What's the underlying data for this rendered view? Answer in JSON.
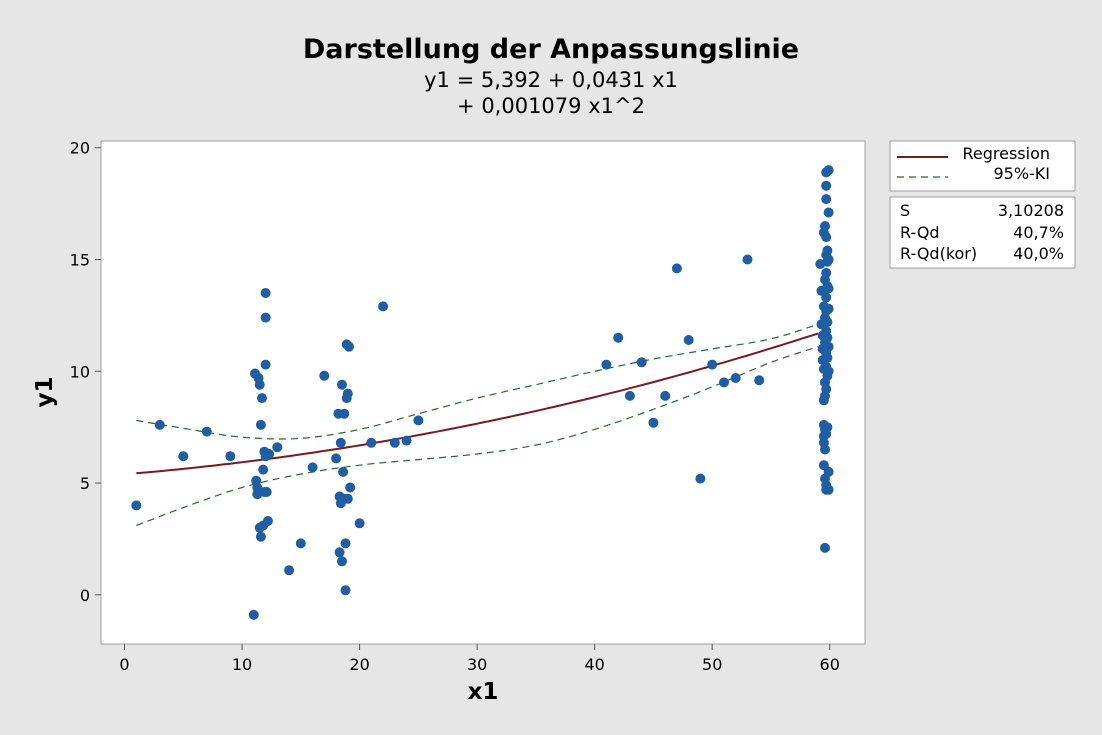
{
  "chart_data": {
    "type": "scatter",
    "title": "Darstellung der Anpassungslinie",
    "subtitle_lines": [
      "y1 = 5,392 + 0,0431 x1",
      "+ 0,001079 x1^2"
    ],
    "xlabel": "x1",
    "ylabel": "y1",
    "xlim": [
      -2,
      63
    ],
    "ylim": [
      -2.2,
      20.3
    ],
    "xticks": [
      0,
      10,
      20,
      30,
      40,
      50,
      60
    ],
    "yticks": [
      0,
      5,
      10,
      15,
      20
    ],
    "grid": false,
    "legend": {
      "position": "right",
      "entries": [
        {
          "label": "Regression",
          "style": "solid",
          "color": "#7a1a1f"
        },
        {
          "label": "95%-KI",
          "style": "dashed",
          "color": "#1e6e2a"
        }
      ]
    },
    "stats": [
      {
        "label": "S",
        "value": "3,10208"
      },
      {
        "label": "R-Qd",
        "value": "40,7%"
      },
      {
        "label": "R-Qd(kor)",
        "value": "40,0%"
      }
    ],
    "colors": {
      "points": "#1f5ea3",
      "regression": "#7a1a1f",
      "ci": "#1e6e2a",
      "background": "#e6e6e6",
      "plot_background": "#ffffff"
    },
    "regression": {
      "b0": 5.392,
      "b1": 0.0431,
      "b2": 0.001079,
      "x_range": [
        1,
        59
      ]
    },
    "ci_upper": [
      [
        1,
        7.8
      ],
      [
        5,
        7.45
      ],
      [
        10,
        7.05
      ],
      [
        15,
        7.0
      ],
      [
        20,
        7.4
      ],
      [
        25,
        8.1
      ],
      [
        30,
        8.8
      ],
      [
        35,
        9.4
      ],
      [
        40,
        10.0
      ],
      [
        45,
        10.55
      ],
      [
        50,
        11.0
      ],
      [
        55,
        11.45
      ],
      [
        59,
        12.1
      ]
    ],
    "ci_lower": [
      [
        1,
        3.1
      ],
      [
        5,
        3.9
      ],
      [
        10,
        4.8
      ],
      [
        15,
        5.4
      ],
      [
        20,
        5.8
      ],
      [
        25,
        6.05
      ],
      [
        30,
        6.3
      ],
      [
        35,
        6.7
      ],
      [
        40,
        7.4
      ],
      [
        45,
        8.3
      ],
      [
        50,
        9.3
      ],
      [
        55,
        10.4
      ],
      [
        59,
        11.1
      ]
    ],
    "points": [
      [
        1,
        4.0
      ],
      [
        3,
        7.6
      ],
      [
        5,
        6.2
      ],
      [
        7,
        7.3
      ],
      [
        9,
        6.2
      ],
      [
        11,
        -0.9
      ],
      [
        11.1,
        9.9
      ],
      [
        11.2,
        5.1
      ],
      [
        11.3,
        4.5
      ],
      [
        11.3,
        4.8
      ],
      [
        11.4,
        9.7
      ],
      [
        11.5,
        9.4
      ],
      [
        11.5,
        3.0
      ],
      [
        11.6,
        7.6
      ],
      [
        11.6,
        2.6
      ],
      [
        11.7,
        8.8
      ],
      [
        11.8,
        5.6
      ],
      [
        11.8,
        3.1
      ],
      [
        11.9,
        6.4
      ],
      [
        11.9,
        4.6
      ],
      [
        12,
        10.3
      ],
      [
        12,
        6.2
      ],
      [
        12,
        13.5
      ],
      [
        12,
        12.4
      ],
      [
        12.1,
        4.6
      ],
      [
        12.2,
        3.3
      ],
      [
        12.3,
        6.3
      ],
      [
        13,
        6.6
      ],
      [
        14,
        1.1
      ],
      [
        15,
        2.3
      ],
      [
        16,
        5.7
      ],
      [
        17,
        9.8
      ],
      [
        18,
        6.1
      ],
      [
        18.2,
        8.1
      ],
      [
        18.3,
        4.4
      ],
      [
        18.3,
        1.9
      ],
      [
        18.4,
        6.8
      ],
      [
        18.4,
        4.1
      ],
      [
        18.5,
        9.4
      ],
      [
        18.5,
        1.5
      ],
      [
        18.6,
        5.5
      ],
      [
        18.7,
        8.1
      ],
      [
        18.7,
        4.3
      ],
      [
        18.8,
        2.3
      ],
      [
        18.8,
        0.2
      ],
      [
        18.9,
        8.8
      ],
      [
        18.9,
        11.2
      ],
      [
        19,
        9.0
      ],
      [
        19,
        4.3
      ],
      [
        19.1,
        11.1
      ],
      [
        19.2,
        4.8
      ],
      [
        20,
        3.2
      ],
      [
        21,
        6.8
      ],
      [
        22,
        12.9
      ],
      [
        23,
        6.8
      ],
      [
        24,
        6.9
      ],
      [
        25,
        7.8
      ],
      [
        41,
        10.3
      ],
      [
        42,
        11.5
      ],
      [
        43,
        8.9
      ],
      [
        44,
        10.4
      ],
      [
        45,
        7.7
      ],
      [
        46,
        8.9
      ],
      [
        47,
        14.6
      ],
      [
        48,
        11.4
      ],
      [
        49,
        5.2
      ],
      [
        50,
        10.3
      ],
      [
        51,
        9.5
      ],
      [
        52,
        9.7
      ],
      [
        53,
        15.0
      ],
      [
        54,
        9.6
      ],
      [
        59.2,
        14.8
      ],
      [
        59.3,
        13.6
      ],
      [
        59.3,
        12.1
      ],
      [
        59.4,
        11.6
      ],
      [
        59.4,
        11.0
      ],
      [
        59.4,
        10.5
      ],
      [
        59.5,
        16.2
      ],
      [
        59.5,
        12.9
      ],
      [
        59.5,
        10.1
      ],
      [
        59.5,
        8.7
      ],
      [
        59.5,
        7.6
      ],
      [
        59.5,
        7.1
      ],
      [
        59.5,
        6.8
      ],
      [
        59.5,
        5.8
      ],
      [
        59.6,
        16.5
      ],
      [
        59.6,
        14.1
      ],
      [
        59.6,
        12.4
      ],
      [
        59.6,
        11.3
      ],
      [
        59.6,
        9.5
      ],
      [
        59.6,
        8.9
      ],
      [
        59.6,
        7.4
      ],
      [
        59.6,
        6.5
      ],
      [
        59.6,
        5.2
      ],
      [
        59.6,
        2.1
      ],
      [
        59.7,
        18.9
      ],
      [
        59.7,
        18.3
      ],
      [
        59.7,
        17.7
      ],
      [
        59.7,
        16.0
      ],
      [
        59.7,
        15.2
      ],
      [
        59.7,
        14.4
      ],
      [
        59.7,
        13.3
      ],
      [
        59.7,
        12.7
      ],
      [
        59.7,
        11.8
      ],
      [
        59.7,
        10.8
      ],
      [
        59.7,
        10.2
      ],
      [
        59.7,
        9.2
      ],
      [
        59.7,
        7.2
      ],
      [
        59.7,
        4.9
      ],
      [
        59.7,
        4.7
      ],
      [
        59.8,
        15.4
      ],
      [
        59.8,
        14.9
      ],
      [
        59.8,
        13.8
      ],
      [
        59.8,
        12.2
      ],
      [
        59.8,
        11.5
      ],
      [
        59.8,
        10.6
      ],
      [
        59.8,
        9.8
      ],
      [
        59.8,
        7.5
      ],
      [
        59.9,
        19.0
      ],
      [
        59.9,
        17.1
      ],
      [
        59.9,
        15.0
      ],
      [
        59.9,
        13.7
      ],
      [
        59.9,
        12.8
      ],
      [
        59.9,
        11.1
      ],
      [
        59.9,
        10.0
      ],
      [
        59.9,
        5.5
      ],
      [
        59.9,
        4.7
      ]
    ]
  }
}
